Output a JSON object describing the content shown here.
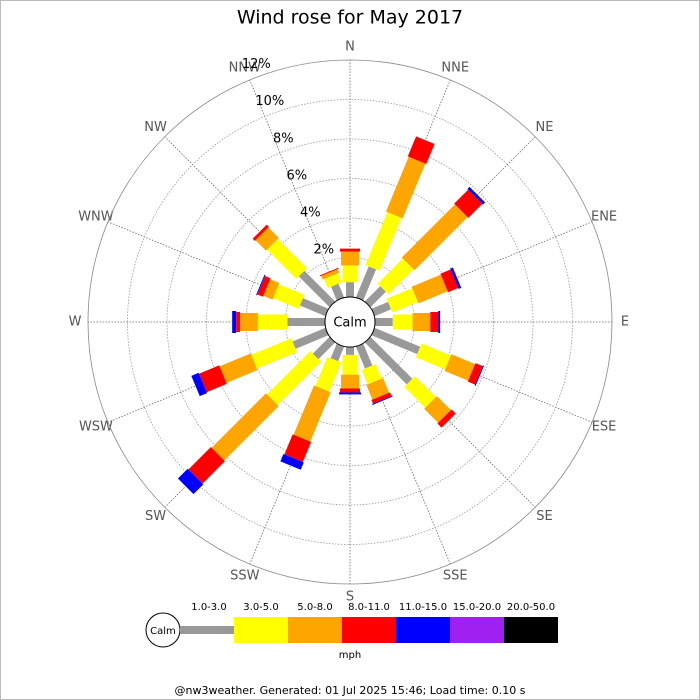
{
  "chart_data": {
    "type": "windrose",
    "title": "Wind rose for May 2017",
    "categories": [
      "N",
      "NNE",
      "NE",
      "ENE",
      "E",
      "ESE",
      "SE",
      "SSE",
      "S",
      "SSW",
      "SW",
      "WSW",
      "W",
      "WNW",
      "NW",
      "NNW"
    ],
    "series": [
      {
        "name": "1.0-3.0",
        "color": "#999999",
        "values": [
          0.75,
          1.7,
          1.1,
          0.9,
          0.9,
          2.5,
          3.0,
          1.2,
          0.4,
          0.8,
          1.2,
          1.8,
          1.9,
          1.4,
          2.2,
          0.75
        ]
      },
      {
        "name": "3.0-5.0",
        "color": "#ffff00",
        "values": [
          0.85,
          2.9,
          1.8,
          1.4,
          1.0,
          1.6,
          1.5,
          0.8,
          1.0,
          1.6,
          3.1,
          2.2,
          1.5,
          1.4,
          2.1,
          0.5
        ]
      },
      {
        "name": "5.0-8.0",
        "color": "#ffa500",
        "values": [
          0.7,
          3.0,
          3.8,
          1.6,
          0.9,
          1.3,
          1.0,
          0.8,
          0.7,
          2.7,
          3.9,
          1.7,
          0.9,
          0.5,
          0.75,
          0.2
        ]
      },
      {
        "name": "8.0-11.0",
        "color": "#ff0000",
        "values": [
          0.15,
          1.1,
          1.0,
          0.55,
          0.4,
          0.4,
          0.3,
          0.2,
          0.2,
          1.1,
          1.6,
          1.1,
          0.2,
          0.3,
          0.15,
          0.05
        ]
      },
      {
        "name": "11.0-15.0",
        "color": "#0000ff",
        "values": [
          0,
          0,
          0.15,
          0.15,
          0.1,
          0.05,
          0,
          0.05,
          0.1,
          0.4,
          0.7,
          0.4,
          0.2,
          0.05,
          0,
          0
        ]
      },
      {
        "name": "15.0-20.0",
        "color": "#a020f0",
        "values": [
          0,
          0,
          0,
          0,
          0,
          0,
          0,
          0,
          0,
          0,
          0,
          0,
          0,
          0,
          0,
          0
        ]
      },
      {
        "name": "20.0-50.0",
        "color": "#000000",
        "values": [
          0,
          0,
          0,
          0,
          0,
          0,
          0,
          0,
          0,
          0,
          0,
          0,
          0,
          0,
          0,
          0
        ]
      }
    ],
    "rlim": [
      0,
      12
    ],
    "rticks": [
      {
        "value": 2,
        "label": "2%"
      },
      {
        "value": 4,
        "label": "4%"
      },
      {
        "value": 6,
        "label": "6%"
      },
      {
        "value": 8,
        "label": "8%"
      },
      {
        "value": 10,
        "label": "10%"
      },
      {
        "value": 12,
        "label": "12%"
      }
    ],
    "grid": true,
    "calm_label": "Calm",
    "legend_unit": "mph",
    "footer": "@nw3weather. Generated: 01 Jul 2025 15:46; Load time: 0.10 s"
  }
}
